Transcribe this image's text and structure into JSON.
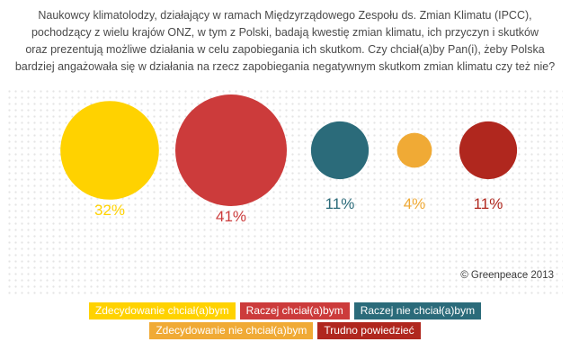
{
  "question": "Naukowcy klimatolodzy, działający w ramach Międzyrządowego Zespołu ds. Zmian Klimatu (IPCC), pochodzący z wielu krajów ONZ, w tym z Polski, badają kwestię zmian klimatu, ich przyczyn i skutków oraz prezentują możliwe działania w celu zapobiegania ich skutkom. Czy chciał(a)by Pan(i), żeby Polska bardziej angażowała się w działania na rzecz zapobiegania negatywnym skutkom zmian klimatu czy też nie?",
  "question_lines": [
    "Naukowcy klimatolodzy, działający w ramach Międzyrządowego Zespołu ds. Zmian Klimatu (IPCC),",
    "pochodzący z wielu krajów ONZ, w tym z Polski, badają kwestię zmian klimatu, ich przyczyn i skutków",
    "oraz prezentują możliwe działania w celu zapobiegania ich skutkom. Czy chciał(a)by Pan(i), żeby Polska",
    "bardziej angażowała się w działania na rzecz zapobiegania negatywnym skutkom zmian klimatu czy też nie?"
  ],
  "credit": "© Greenpeace 2013",
  "chart_data": {
    "type": "bubble",
    "categories": [
      "Zdecydowanie chciał(a)bym",
      "Raczej chciał(a)bym",
      "Raczej nie chciał(a)bym",
      "Zdecydowanie nie chciał(a)bym",
      "Trudno powiedzieć"
    ],
    "values": [
      32,
      41,
      11,
      4,
      11
    ],
    "value_labels": [
      "32%",
      "41%",
      "11%",
      "4%",
      "11%"
    ],
    "colors": [
      "#ffd200",
      "#cc3b3b",
      "#2b6b7a",
      "#f0aa35",
      "#b0271e"
    ],
    "grid": "dot-pattern background",
    "legend": "bottom"
  },
  "legend": {
    "row1": [
      {
        "label": "Zdecydowanie chciał(a)bym",
        "color": "#ffd200"
      },
      {
        "label": "Raczej chciał(a)bym",
        "color": "#cc3b3b"
      },
      {
        "label": "Raczej nie chciał(a)bym",
        "color": "#2b6b7a"
      }
    ],
    "row2": [
      {
        "label": "Zdecydowanie nie chciał(a)bym",
        "color": "#f0aa35"
      },
      {
        "label": "Trudno powiedzieć",
        "color": "#b0271e"
      }
    ]
  }
}
